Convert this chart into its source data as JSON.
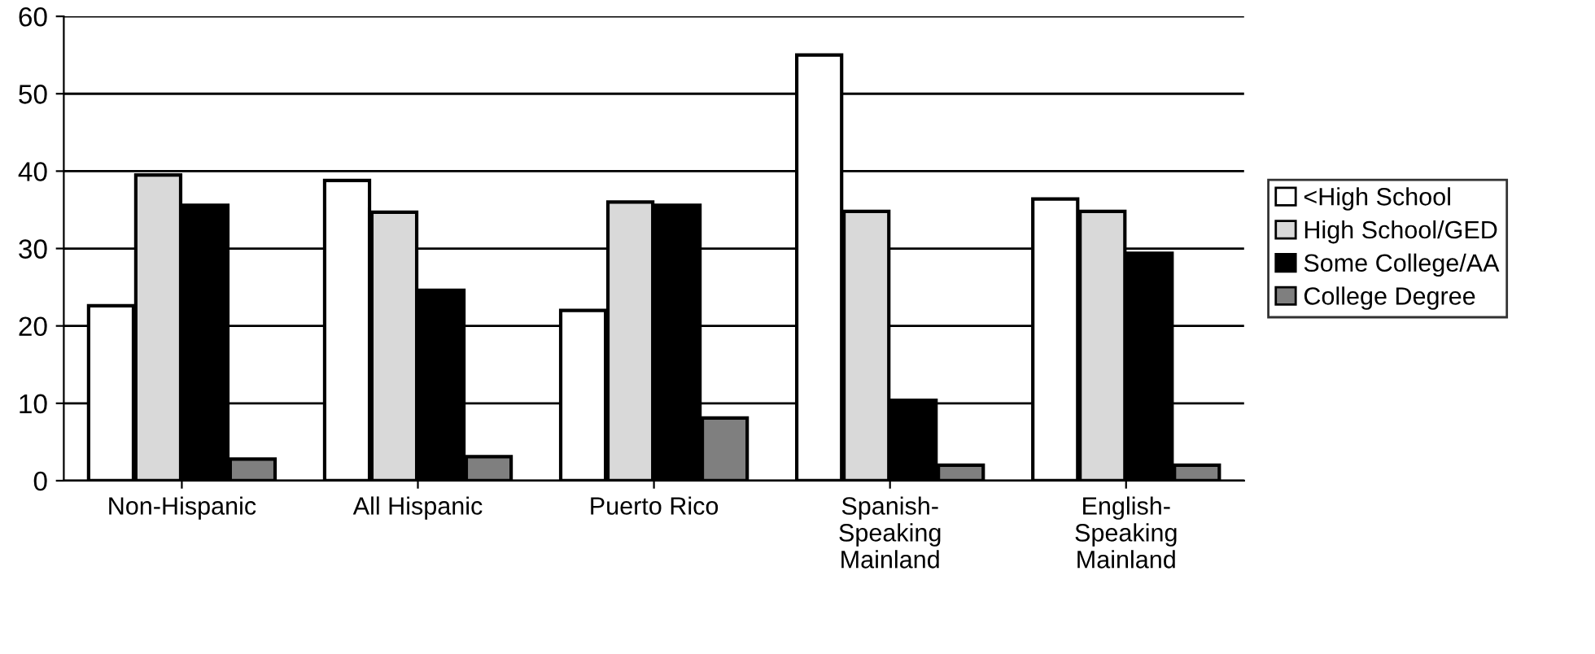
{
  "chart_data": {
    "type": "bar",
    "categories": [
      "Non-Hispanic",
      "All Hispanic",
      "Puerto Rico",
      "Spanish-\nSpeaking\nMainland",
      "English-\nSpeaking\nMainland"
    ],
    "series": [
      {
        "name": "<High School",
        "color": "#ffffff",
        "values": [
          22.6,
          38.8,
          22,
          55,
          36.4
        ]
      },
      {
        "name": "High School/GED",
        "color": "#d9d9d9",
        "values": [
          39.5,
          34.7,
          36,
          34.8,
          34.8
        ]
      },
      {
        "name": "Some College/AA",
        "color": "#000000",
        "values": [
          35.6,
          24.6,
          35.6,
          10.4,
          29.4
        ]
      },
      {
        "name": "College Degree",
        "color": "#7f7f7f",
        "values": [
          2.8,
          3.1,
          8.1,
          2,
          2
        ]
      }
    ],
    "ylim": [
      0,
      60
    ],
    "yticks": [
      0,
      10,
      20,
      30,
      40,
      50,
      60
    ],
    "grid": "y",
    "legend": "right"
  }
}
